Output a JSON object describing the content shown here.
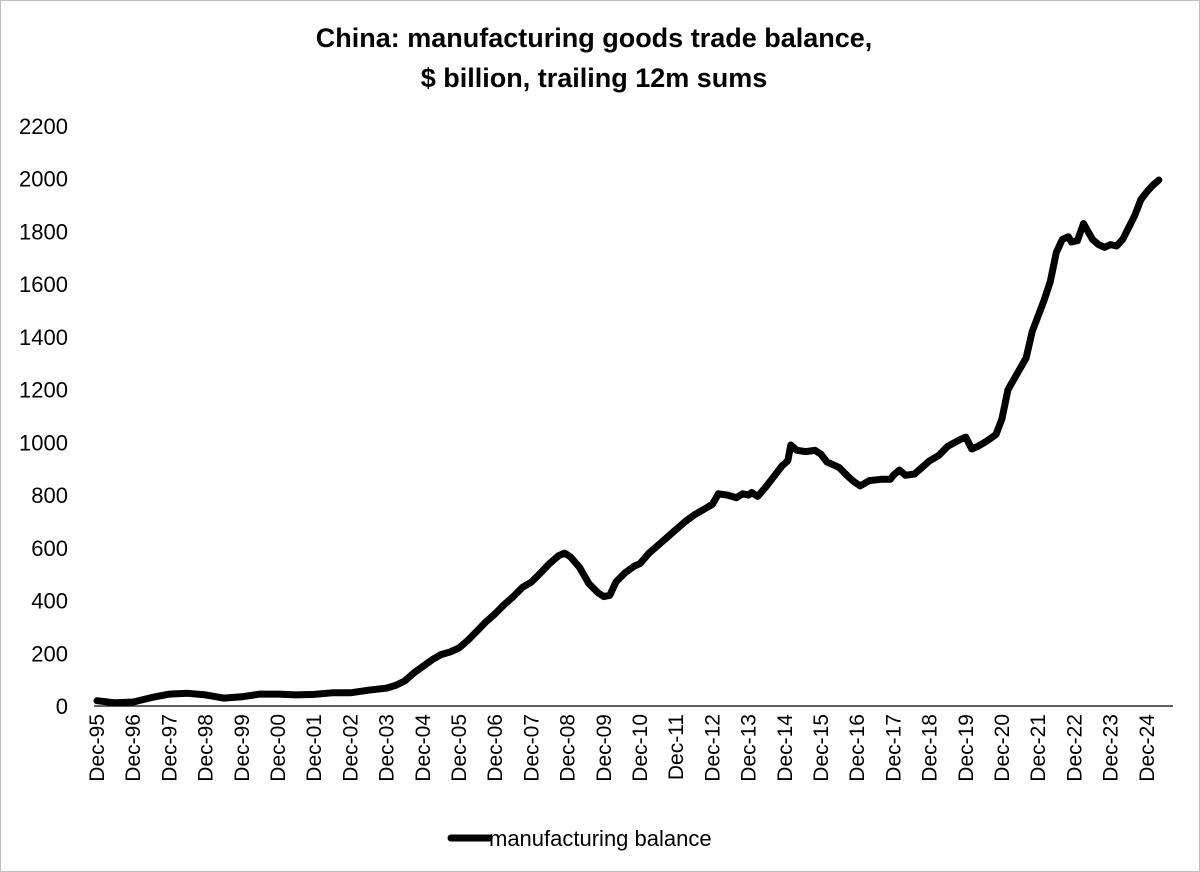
{
  "chart_data": {
    "type": "line",
    "title_lines": [
      "China: manufacturing goods trade balance,",
      "$ billion, trailing 12m sums"
    ],
    "title": "China: manufacturing goods trade balance, $ billion, trailing 12m sums",
    "xlabel": "",
    "ylabel": "",
    "ylim": [
      0,
      2200
    ],
    "y_ticks": [
      "0",
      "200",
      "400",
      "600",
      "800",
      "1000",
      "1200",
      "1400",
      "1600",
      "1800",
      "2000",
      "2200"
    ],
    "x_ticks": [
      "Dec-95",
      "Dec-96",
      "Dec-97",
      "Dec-98",
      "Dec-99",
      "Dec-00",
      "Dec-01",
      "Dec-02",
      "Dec-03",
      "Dec-04",
      "Dec-05",
      "Dec-06",
      "Dec-07",
      "Dec-08",
      "Dec-09",
      "Dec-10",
      "Dec-11",
      "Dec-12",
      "Dec-13",
      "Dec-14",
      "Dec-15",
      "Dec-16",
      "Dec-17",
      "Dec-18",
      "Dec-19",
      "Dec-20",
      "Dec-21",
      "Dec-22",
      "Dec-23",
      "Dec-24"
    ],
    "grid": false,
    "legend_position": "bottom",
    "color": "#000000",
    "series": [
      {
        "name": "manufacturing balance",
        "points": [
          [
            "Dec-95",
            20
          ],
          [
            "Jun-96",
            12
          ],
          [
            "Dec-96",
            15
          ],
          [
            "Jun-97",
            32
          ],
          [
            "Dec-97",
            45
          ],
          [
            "Jun-98",
            48
          ],
          [
            "Dec-98",
            42
          ],
          [
            "Jun-99",
            30
          ],
          [
            "Dec-99",
            35
          ],
          [
            "Jun-00",
            45
          ],
          [
            "Dec-00",
            45
          ],
          [
            "Jun-01",
            42
          ],
          [
            "Dec-01",
            44
          ],
          [
            "Jun-02",
            50
          ],
          [
            "Dec-02",
            50
          ],
          [
            "Jun-03",
            60
          ],
          [
            "Dec-03",
            68
          ],
          [
            "Mar-04",
            78
          ],
          [
            "Jun-04",
            95
          ],
          [
            "Sep-04",
            125
          ],
          [
            "Dec-04",
            150
          ],
          [
            "Mar-05",
            175
          ],
          [
            "Jun-05",
            195
          ],
          [
            "Sep-05",
            205
          ],
          [
            "Dec-05",
            220
          ],
          [
            "Mar-06",
            250
          ],
          [
            "Jun-06",
            285
          ],
          [
            "Sep-06",
            320
          ],
          [
            "Dec-06",
            350
          ],
          [
            "Mar-07",
            385
          ],
          [
            "Jun-07",
            415
          ],
          [
            "Sep-07",
            450
          ],
          [
            "Dec-07",
            470
          ],
          [
            "Mar-08",
            505
          ],
          [
            "Jun-08",
            540
          ],
          [
            "Sep-08",
            570
          ],
          [
            "Nov-08",
            580
          ],
          [
            "Jan-09",
            565
          ],
          [
            "Apr-09",
            525
          ],
          [
            "Jul-09",
            465
          ],
          [
            "Oct-09",
            430
          ],
          [
            "Dec-09",
            415
          ],
          [
            "Feb-10",
            420
          ],
          [
            "Apr-10",
            470
          ],
          [
            "Jul-10",
            505
          ],
          [
            "Oct-10",
            530
          ],
          [
            "Dec-10",
            540
          ],
          [
            "Mar-11",
            580
          ],
          [
            "Jun-11",
            610
          ],
          [
            "Sep-11",
            640
          ],
          [
            "Dec-11",
            670
          ],
          [
            "Mar-12",
            700
          ],
          [
            "Jun-12",
            725
          ],
          [
            "Sep-12",
            745
          ],
          [
            "Dec-12",
            765
          ],
          [
            "Feb-13",
            805
          ],
          [
            "May-13",
            800
          ],
          [
            "Aug-13",
            790
          ],
          [
            "Oct-13",
            805
          ],
          [
            "Dec-13",
            800
          ],
          [
            "Jan-14",
            810
          ],
          [
            "Mar-14",
            795
          ],
          [
            "Jun-14",
            835
          ],
          [
            "Sep-14",
            880
          ],
          [
            "Nov-14",
            910
          ],
          [
            "Jan-15",
            930
          ],
          [
            "Feb-15",
            990
          ],
          [
            "Apr-15",
            970
          ],
          [
            "Jul-15",
            965
          ],
          [
            "Oct-15",
            970
          ],
          [
            "Dec-15",
            955
          ],
          [
            "Feb-16",
            925
          ],
          [
            "Jun-16",
            905
          ],
          [
            "Sep-16",
            870
          ],
          [
            "Nov-16",
            850
          ],
          [
            "Jan-17",
            835
          ],
          [
            "Apr-17",
            855
          ],
          [
            "Aug-17",
            860
          ],
          [
            "Nov-17",
            860
          ],
          [
            "Dec-17",
            875
          ],
          [
            "Feb-18",
            895
          ],
          [
            "Apr-18",
            875
          ],
          [
            "Jul-18",
            880
          ],
          [
            "Sep-18",
            900
          ],
          [
            "Dec-18",
            930
          ],
          [
            "Mar-19",
            950
          ],
          [
            "Jun-19",
            985
          ],
          [
            "Oct-19",
            1010
          ],
          [
            "Dec-19",
            1020
          ],
          [
            "Feb-20",
            975
          ],
          [
            "Apr-20",
            985
          ],
          [
            "Jul-20",
            1005
          ],
          [
            "Oct-20",
            1030
          ],
          [
            "Dec-20",
            1090
          ],
          [
            "Feb-21",
            1200
          ],
          [
            "May-21",
            1260
          ],
          [
            "Aug-21",
            1320
          ],
          [
            "Oct-21",
            1420
          ],
          [
            "Dec-21",
            1480
          ],
          [
            "Feb-22",
            1540
          ],
          [
            "Apr-22",
            1610
          ],
          [
            "Jun-22",
            1720
          ],
          [
            "Aug-22",
            1770
          ],
          [
            "Oct-22",
            1780
          ],
          [
            "Nov-22",
            1760
          ],
          [
            "Jan-23",
            1765
          ],
          [
            "Mar-23",
            1830
          ],
          [
            "Apr-23",
            1810
          ],
          [
            "Jun-23",
            1770
          ],
          [
            "Aug-23",
            1750
          ],
          [
            "Oct-23",
            1740
          ],
          [
            "Dec-23",
            1750
          ],
          [
            "Feb-24",
            1745
          ],
          [
            "Apr-24",
            1770
          ],
          [
            "Jun-24",
            1815
          ],
          [
            "Aug-24",
            1860
          ],
          [
            "Oct-24",
            1920
          ],
          [
            "Dec-24",
            1950
          ],
          [
            "Feb-25",
            1975
          ],
          [
            "Apr-25",
            1995
          ]
        ]
      }
    ]
  }
}
